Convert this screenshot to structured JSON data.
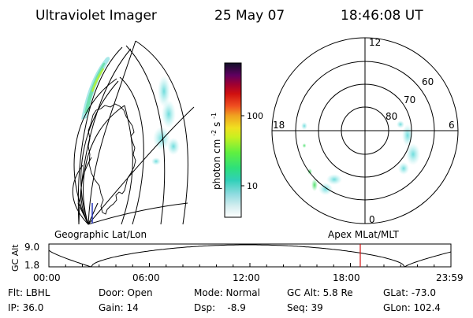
{
  "header": {
    "instrument": "Ultraviolet Imager",
    "date": "25 May 07",
    "time": "18:46:08 UT"
  },
  "left_panel": {
    "label": "Geographic Lat/Lon"
  },
  "colorbar": {
    "unit": "photon cm",
    "unit_sup1": "-2",
    "unit_s": "s",
    "unit_sup2": "-1",
    "tick_100": "100",
    "tick_10": "10"
  },
  "polar_plot": {
    "label": "Apex MLat/MLT",
    "mlt_12": "12",
    "mlt_18": "18",
    "mlt_6": "6",
    "mlt_0": "0",
    "lat_60": "60",
    "lat_70": "70",
    "lat_80": "80"
  },
  "timeline": {
    "ylabel": "GC Alt",
    "y_top": "9.0",
    "y_bottom": "1.8",
    "x_ticks": [
      "00:00",
      "06:00",
      "12:00",
      "18:00",
      "23:59"
    ],
    "marker_color": "#d01010"
  },
  "status": {
    "flt": "Flt: LBHL",
    "ip": "IP: 36.0",
    "door": "Door: Open",
    "gain": "Gain: 14",
    "mode": "Mode: Normal",
    "dsp": "Dsp:    -8.9",
    "gcalt": "GC Alt: 5.8 Re",
    "seq": "Seq: 39",
    "glat": "GLat: -73.0",
    "glon": "GLon: 102.4"
  }
}
